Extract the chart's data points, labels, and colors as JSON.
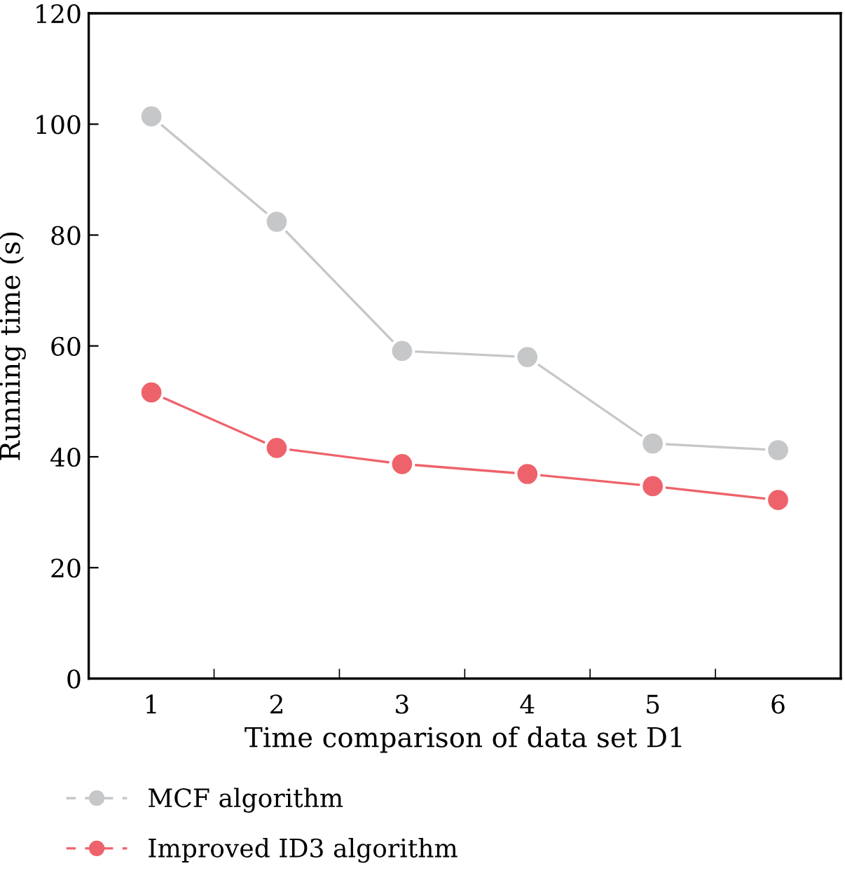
{
  "chart_data": {
    "type": "line",
    "xlabel": "Time comparison of data set D1",
    "ylabel": "Running time (s)",
    "categories": [
      "1",
      "2",
      "3",
      "4",
      "5",
      "6"
    ],
    "series": [
      {
        "name": "MCF algorithm",
        "color": "#c6c7c9",
        "values": [
          101.4,
          82.4,
          59.1,
          58.0,
          42.4,
          41.2
        ]
      },
      {
        "name": "Improved ID3 algorithm",
        "color": "#ee636b",
        "values": [
          51.6,
          41.6,
          38.7,
          36.9,
          34.7,
          32.2
        ]
      }
    ],
    "ylim": [
      0,
      120
    ],
    "yticks": [
      0,
      20,
      40,
      60,
      80,
      100,
      120
    ],
    "grid": false,
    "legend": "bottom left",
    "marker": "circle",
    "line_style": "solid"
  }
}
